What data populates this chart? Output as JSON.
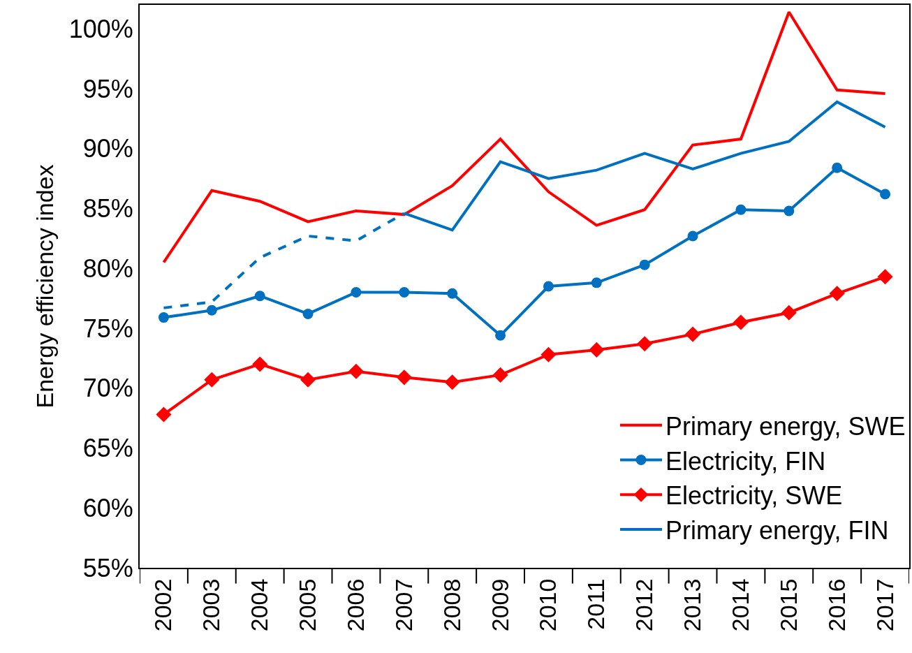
{
  "chart_data": {
    "type": "line",
    "ylabel": "Energy efficiency index",
    "categories": [
      "2002",
      "2003",
      "2004",
      "2005",
      "2006",
      "2007",
      "2008",
      "2009",
      "2010",
      "2011",
      "2012",
      "2013",
      "2014",
      "2015",
      "2016",
      "2017"
    ],
    "series": [
      {
        "name": "Primary energy, SWE",
        "color": "#ff0000",
        "marker": "none",
        "line_style": "solid",
        "values": [
          80.5,
          86.5,
          85.6,
          83.9,
          84.8,
          84.5,
          86.9,
          90.8,
          86.4,
          83.6,
          84.9,
          90.3,
          90.8,
          101.4,
          94.9,
          94.6
        ]
      },
      {
        "name": "Electricity, FIN",
        "color": "#0070c0",
        "marker": "circle",
        "line_style": "solid",
        "values": [
          75.9,
          76.5,
          77.7,
          76.2,
          78.0,
          78.0,
          77.9,
          74.4,
          78.5,
          78.8,
          80.3,
          82.7,
          84.9,
          84.8,
          88.4,
          86.2
        ]
      },
      {
        "name": "Electricity, SWE",
        "color": "#ff0000",
        "marker": "diamond",
        "line_style": "solid",
        "values": [
          67.8,
          70.7,
          72.0,
          70.7,
          71.4,
          70.9,
          70.5,
          71.1,
          72.8,
          73.2,
          73.7,
          74.5,
          75.5,
          76.3,
          77.9,
          79.3
        ]
      },
      {
        "name": "Primary energy, FIN",
        "color": "#0070c0",
        "marker": "none",
        "line_style": "solid",
        "values": [
          null,
          null,
          null,
          null,
          null,
          84.6,
          83.2,
          88.9,
          87.5,
          88.2,
          89.6,
          88.3,
          89.6,
          90.6,
          93.9,
          91.8
        ]
      },
      {
        "color": "#0070c0",
        "marker": "none",
        "line_style": "dashed",
        "values": [
          76.7,
          77.2,
          80.9,
          82.7,
          82.3,
          84.6,
          null,
          null,
          null,
          null,
          null,
          null,
          null,
          null,
          null,
          null
        ]
      }
    ],
    "ylim": [
      55,
      102
    ],
    "yticks": [
      {
        "value": 55,
        "label": "55%"
      },
      {
        "value": 60,
        "label": "60%"
      },
      {
        "value": 65,
        "label": "65%"
      },
      {
        "value": 70,
        "label": "70%"
      },
      {
        "value": 75,
        "label": "75%"
      },
      {
        "value": 80,
        "label": "80%"
      },
      {
        "value": 85,
        "label": "85%"
      },
      {
        "value": 90,
        "label": "90%"
      },
      {
        "value": 95,
        "label": "95%"
      },
      {
        "value": 100,
        "label": "100%"
      }
    ],
    "legend": "bottom right"
  }
}
